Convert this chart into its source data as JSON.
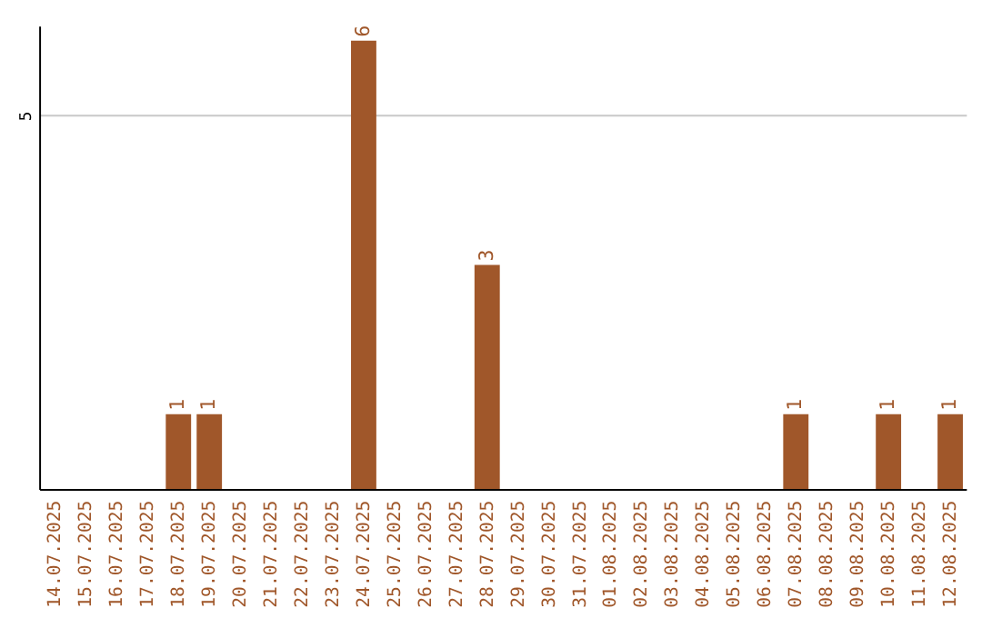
{
  "chart_data": {
    "type": "bar",
    "categories": [
      "14.07.2025",
      "15.07.2025",
      "16.07.2025",
      "17.07.2025",
      "18.07.2025",
      "19.07.2025",
      "20.07.2025",
      "21.07.2025",
      "22.07.2025",
      "23.07.2025",
      "24.07.2025",
      "25.07.2025",
      "26.07.2025",
      "27.07.2025",
      "28.07.2025",
      "29.07.2025",
      "30.07.2025",
      "31.07.2025",
      "01.08.2025",
      "02.08.2025",
      "03.08.2025",
      "04.08.2025",
      "05.08.2025",
      "06.08.2025",
      "07.08.2025",
      "08.08.2025",
      "09.08.2025",
      "10.08.2025",
      "11.08.2025",
      "12.08.2025"
    ],
    "values": [
      0,
      0,
      0,
      0,
      1,
      1,
      0,
      0,
      0,
      0,
      6,
      0,
      0,
      0,
      3,
      0,
      0,
      0,
      0,
      0,
      0,
      0,
      0,
      0,
      1,
      0,
      0,
      1,
      0,
      1
    ],
    "value_labels": [
      null,
      null,
      null,
      null,
      "1",
      "1",
      null,
      null,
      null,
      null,
      "6",
      null,
      null,
      null,
      "3",
      null,
      null,
      null,
      null,
      null,
      null,
      null,
      null,
      null,
      "1",
      null,
      null,
      "1",
      null,
      "1"
    ],
    "color": "#a0572a",
    "ylim": [
      0,
      6.2
    ],
    "yticks": [
      5
    ],
    "grid": "y"
  }
}
